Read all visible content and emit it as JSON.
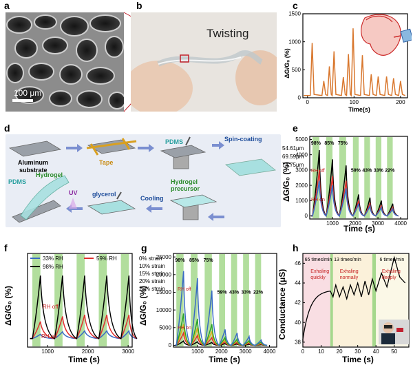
{
  "panels": {
    "a": {
      "label": "a",
      "scale_bar": "100 μm"
    },
    "b": {
      "label": "b",
      "caption": "Twisting"
    },
    "c": {
      "label": "c",
      "chart_type": "line",
      "ylabel": "ΔG/G₀ (%)",
      "xlabel": "Time(s)",
      "y_ticks": [
        "0",
        "500",
        "1000",
        "1500"
      ],
      "x_ticks": [
        "0",
        "100",
        "200"
      ],
      "color": "#d9782f"
    },
    "d": {
      "label": "d",
      "steps": {
        "aluminum": "Aluminum",
        "substrate": "substrate",
        "tape": "Tape",
        "pdms_top": "PDMS",
        "spin": "Spin-coating",
        "pdms_left": "PDMS",
        "hydrogel": "Hydrogel",
        "uv": "UV",
        "glycerol": "glycerol",
        "cooling": "Cooling",
        "precursor_1": "Hydrogel",
        "precursor_2": "precursor"
      }
    },
    "e": {
      "label": "e",
      "ylabel": "ΔG/G₀ (%)",
      "xlabel": "Time (s)",
      "y_ticks": [
        "0",
        "1000",
        "2000",
        "3000",
        "4000",
        "5000"
      ],
      "x_ticks": [
        "1000",
        "2000",
        "3000",
        "4000"
      ],
      "rh_labels": [
        "98%",
        "85%",
        "75%",
        "59%",
        "43%",
        "33%",
        "22%"
      ],
      "rh_off": "RH off",
      "rh_on": "RH on"
    },
    "f": {
      "label": "f",
      "ylabel": "ΔG/G₀ (%)",
      "xlabel": "Time (s)",
      "x_ticks": [
        "1000",
        "2000",
        "3000"
      ],
      "rh_off": "RH off",
      "rh_on": "RH on"
    },
    "g": {
      "label": "g",
      "ylabel": "ΔG/G₀ (%)",
      "xlabel": "Time (s)",
      "y_ticks": [
        "0",
        "5000",
        "10000",
        "15000",
        "20000",
        "25000"
      ],
      "x_ticks": [
        "1000",
        "2000",
        "3000",
        "4000"
      ],
      "rh_labels": [
        "98%",
        "85%",
        "75%",
        "59%",
        "43%",
        "33%",
        "22%"
      ],
      "rh_off": "RH off",
      "rh_on": "RH on"
    },
    "h": {
      "label": "h",
      "ylabel": "Conductance (μS)",
      "xlabel": "Time (s)",
      "y_ticks": [
        "38",
        "40",
        "42",
        "44",
        "46"
      ],
      "x_ticks": [
        "0",
        "10",
        "20",
        "30",
        "40",
        "50"
      ],
      "rates": [
        "65 times/min",
        "13 times/min",
        "6 times/min"
      ],
      "annotations": [
        "Exhaling quickly",
        "Exhaling normally",
        "Exhaling deeply"
      ],
      "ann_lines": [
        [
          "Exhaling",
          "quickly"
        ],
        [
          "Exhaling",
          "normally"
        ],
        [
          "Exhaling",
          "deeply"
        ]
      ]
    }
  },
  "chart_data": [
    {
      "panel": "c",
      "type": "line",
      "xlabel": "Time(s)",
      "ylabel": "ΔG/G₀ (%)",
      "xlim": [
        -10,
        215
      ],
      "ylim": [
        0,
        1500
      ],
      "peaks": [
        [
          10,
          980
        ],
        [
          35,
          300
        ],
        [
          47,
          560
        ],
        [
          57,
          830
        ],
        [
          77,
          370
        ],
        [
          88,
          780
        ],
        [
          98,
          1240
        ],
        [
          118,
          760
        ],
        [
          137,
          420
        ],
        [
          152,
          380
        ],
        [
          170,
          380
        ],
        [
          185,
          350
        ],
        [
          200,
          300
        ]
      ]
    },
    {
      "panel": "e",
      "type": "line",
      "xlabel": "Time (s)",
      "ylabel": "ΔG/G₀ (%)",
      "xlim": [
        0,
        4300
      ],
      "ylim": [
        -200,
        5200
      ],
      "bands": [
        [
          120,
          420
        ],
        [
          720,
          1000
        ],
        [
          1300,
          1600
        ],
        [
          1900,
          2150
        ],
        [
          2400,
          2650
        ],
        [
          2900,
          3150
        ],
        [
          3400,
          3650
        ]
      ],
      "series": [
        {
          "name": "54.61μm",
          "color": "#000000",
          "peaks": [
            4300,
            3700,
            3300,
            1400,
            1200,
            1000,
            800
          ]
        },
        {
          "name": "69.59μm",
          "color": "#e03030",
          "peaks": [
            3000,
            2600,
            2300,
            1000,
            850,
            700,
            550
          ]
        },
        {
          "name": "74.75μm",
          "color": "#3a6bc4",
          "peaks": [
            2300,
            2000,
            1800,
            800,
            650,
            550,
            450
          ]
        }
      ]
    },
    {
      "panel": "f",
      "type": "line",
      "xlabel": "Time (s)",
      "ylabel": "ΔG/G₀ (%)",
      "xlim": [
        500,
        3100
      ],
      "ylim": [
        -100,
        1000
      ],
      "bands": [
        [
          620,
          820
        ],
        [
          1170,
          1370
        ],
        [
          1720,
          1920
        ],
        [
          2270,
          2470
        ],
        [
          2820,
          3020
        ]
      ],
      "series": [
        {
          "name": "33% RH",
          "color": "#3a6bc4",
          "peaks": [
            50,
            80,
            90,
            90,
            90
          ]
        },
        {
          "name": "59% RH",
          "color": "#e03030",
          "peaks": [
            200,
            260,
            280,
            280,
            280
          ]
        },
        {
          "name": "98% RH",
          "color": "#000000",
          "peaks": [
            740,
            740,
            740,
            740,
            740
          ]
        }
      ]
    },
    {
      "panel": "g",
      "type": "line",
      "xlabel": "Time (s)",
      "ylabel": "ΔG/G₀ (%)",
      "xlim": [
        0,
        4300
      ],
      "ylim": [
        -500,
        26000
      ],
      "bands": [
        [
          120,
          420
        ],
        [
          720,
          1000
        ],
        [
          1300,
          1600
        ],
        [
          1900,
          2150
        ],
        [
          2400,
          2650
        ],
        [
          2900,
          3150
        ],
        [
          3400,
          3650
        ]
      ],
      "series": [
        {
          "name": "0% strain",
          "color": "#000000",
          "peaks": [
            1200,
            1000,
            800,
            500,
            400,
            300,
            200
          ]
        },
        {
          "name": "10% strain",
          "color": "#e03030",
          "peaks": [
            3500,
            2800,
            2200,
            1000,
            800,
            600,
            400
          ]
        },
        {
          "name": "15% strain",
          "color": "#e0b020",
          "peaks": [
            6000,
            5000,
            4000,
            1600,
            1300,
            1000,
            700
          ]
        },
        {
          "name": "20% strain",
          "color": "#2aa22a",
          "peaks": [
            9000,
            7500,
            6000,
            2200,
            1700,
            1300,
            900
          ]
        },
        {
          "name": "25% strain",
          "color": "#3a6bc4",
          "peaks": [
            21000,
            19000,
            15500,
            4500,
            3500,
            2500,
            1500
          ]
        }
      ]
    },
    {
      "panel": "h",
      "type": "line",
      "xlabel": "Time (s)",
      "ylabel": "Conductance (μS)",
      "xlim": [
        0,
        58
      ],
      "ylim": [
        37.5,
        47
      ]
    }
  ]
}
